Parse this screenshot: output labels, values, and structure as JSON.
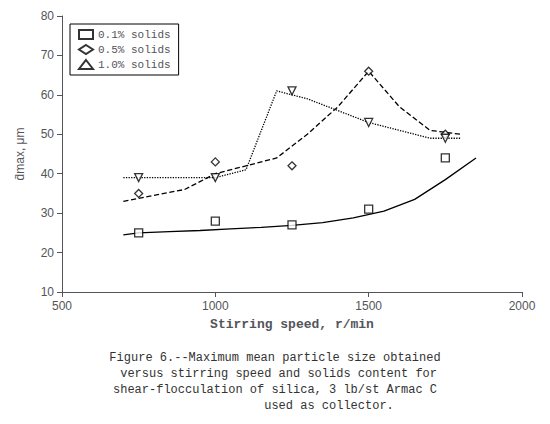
{
  "chart_data": {
    "type": "line",
    "x_label": "Stirring speed, r/min",
    "y_label": "d̄max, μm",
    "annotations": [
      "Figure 6.--Maximum mean particle size obtained",
      " versus stirring speed and solids content for",
      "shear-flocculation of silica, 3 lb/st Armac C",
      "               used as collector."
    ],
    "series": [
      {
        "name": "0.1% solids",
        "marker": "square",
        "line_style": "solid",
        "color": "#000000",
        "x": [
          750,
          1000,
          1250,
          1500,
          1750
        ],
        "values": [
          25,
          28,
          27,
          31,
          44
        ],
        "curve_x": [
          700,
          750,
          850,
          950,
          1050,
          1150,
          1250,
          1350,
          1450,
          1550,
          1650,
          1750,
          1850
        ],
        "curve_y": [
          24.5,
          25,
          25.3,
          25.6,
          26.0,
          26.4,
          26.9,
          27.6,
          28.8,
          30.5,
          33.5,
          38.5,
          44
        ]
      },
      {
        "name": "0.5% solids",
        "marker": "diamond",
        "line_style": "dashed",
        "color": "#000000",
        "x": [
          750,
          1000,
          1250,
          1500,
          1750
        ],
        "values": [
          35,
          43,
          42,
          66,
          50
        ],
        "curve_x": [
          700,
          800,
          900,
          1000,
          1100,
          1200,
          1300,
          1400,
          1500,
          1600,
          1700,
          1800
        ],
        "curve_y": [
          33,
          34.5,
          36,
          40,
          42,
          44,
          50,
          57,
          66,
          57,
          51,
          50
        ]
      },
      {
        "name": "1.0% solids",
        "marker": "triangle_down",
        "line_style": "dotted",
        "color": "#000000",
        "x": [
          750,
          1000,
          1250,
          1500,
          1750
        ],
        "values": [
          39,
          39,
          61,
          53,
          49
        ],
        "curve_x": [
          700,
          800,
          900,
          1000,
          1100,
          1200,
          1300,
          1400,
          1500,
          1600,
          1700,
          1800
        ],
        "curve_y": [
          39,
          39,
          39,
          39,
          41,
          61,
          59,
          56,
          53,
          51,
          49,
          49
        ]
      }
    ],
    "xlim": [
      500,
      2000
    ],
    "xticks": [
      500,
      1000,
      1500,
      2000
    ],
    "ylim": [
      10,
      80
    ],
    "yticks": [
      10,
      20,
      30,
      40,
      50,
      60,
      70,
      80
    ],
    "grid": false,
    "legend": "upper left"
  }
}
